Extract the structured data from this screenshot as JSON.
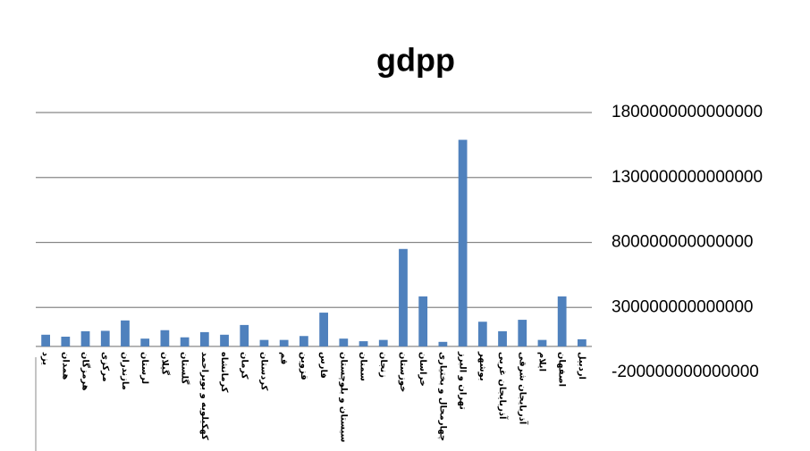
{
  "chart_data": {
    "type": "bar",
    "title": "gdpp",
    "categories": [
      "یزد",
      "همدان",
      "هرمزگان",
      "مرکزی",
      "مازندران",
      "لرستان",
      "گیلان",
      "گلستان",
      "کهکیلویه و بویراحمد",
      "کرمانشاه",
      "کرمان",
      "کردستان",
      "قم",
      "قزوین",
      "فارس",
      "سیستان و بلوچستان",
      "سمنان",
      "زنجان",
      "خوزستان",
      "خراسان",
      "چهارمحال و بختیاری",
      "تهران و البرز",
      "بوشهر",
      "آذربایجان غربی",
      "آذربایجان شرقی",
      "ایلام",
      "اصفهان",
      "اردبیل"
    ],
    "values": [
      90000000000000,
      75000000000000,
      117000000000000,
      120000000000000,
      200000000000000,
      60000000000000,
      125000000000000,
      70000000000000,
      110000000000000,
      90000000000000,
      165000000000000,
      50000000000000,
      50000000000000,
      80000000000000,
      260000000000000,
      60000000000000,
      40000000000000,
      50000000000000,
      750000000000000,
      385000000000000,
      35000000000000,
      1590000000000000,
      190000000000000,
      117000000000000,
      205000000000000,
      50000000000000,
      385000000000000,
      55000000000000
    ],
    "color": "#4f81bd",
    "ylim": [
      -200000000000000,
      1800000000000000
    ],
    "yticks": [
      -200000000000000,
      300000000000000,
      800000000000000,
      1300000000000000,
      1800000000000000
    ],
    "grid": true
  }
}
